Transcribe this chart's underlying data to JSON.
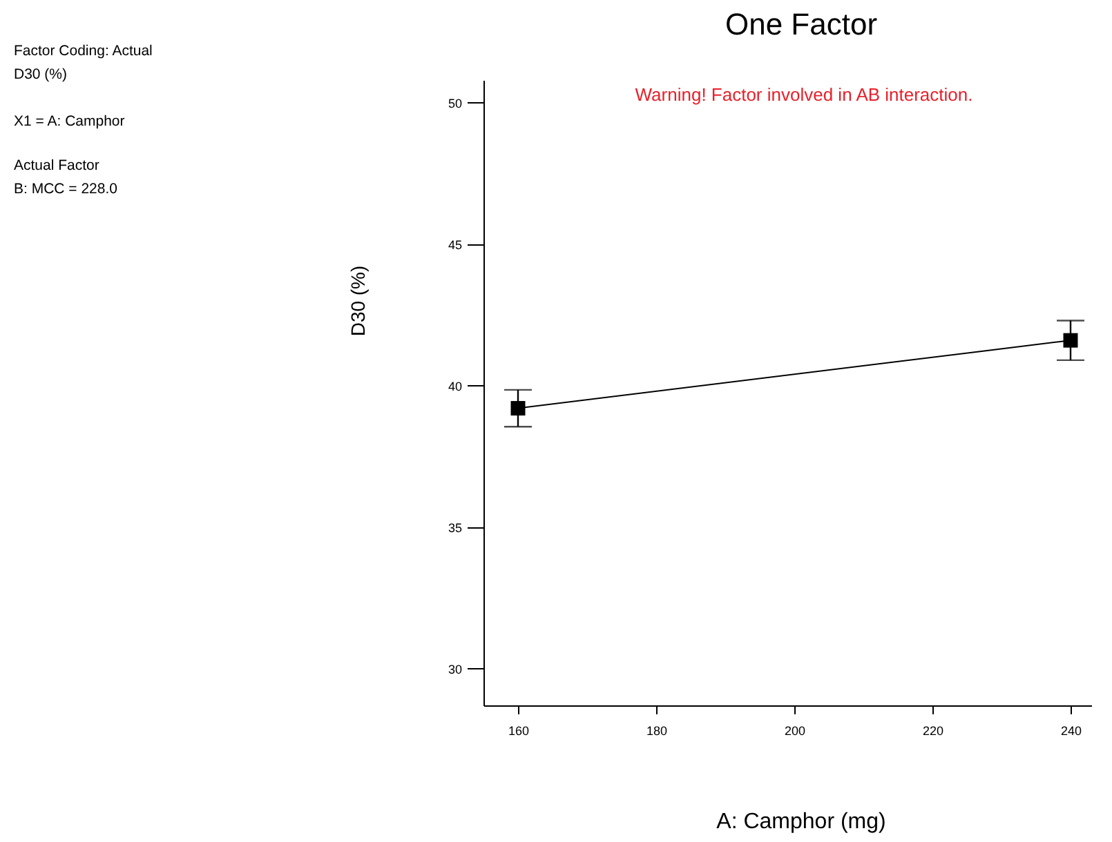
{
  "chart_data": {
    "type": "line",
    "title": "One Factor",
    "xlabel": "A: Camphor (mg)",
    "ylabel": "D30 (%)",
    "x": [
      160,
      240
    ],
    "series": [
      {
        "color": "#000000",
        "values": [
          39.2,
          41.6
        ],
        "errors": [
          0.65,
          0.7
        ]
      }
    ],
    "xlim": [
      155,
      243
    ],
    "xticks": [
      160,
      180,
      200,
      220,
      240
    ],
    "ylim": [
      28.7,
      50.8
    ],
    "yticks": [
      30,
      35,
      40,
      45,
      50
    ],
    "marker": "square",
    "line_style": "solid",
    "grid": false,
    "annotations": [
      "Factor Coding: Actual",
      "D30 (%)",
      "X1 = A: Camphor",
      "Actual Factor",
      "B: MCC = 228.0",
      "Warning! Factor involved in AB interaction."
    ]
  }
}
